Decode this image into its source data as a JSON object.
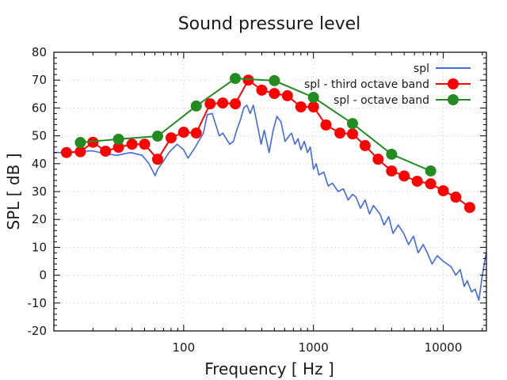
{
  "chart_data": {
    "type": "line",
    "title": "Sound pressure level",
    "xlabel": "Frequency [ Hz ]",
    "ylabel": "SPL [ dB ]",
    "xscale": "log",
    "xlim": [
      10,
      21500
    ],
    "ylim": [
      -20,
      80
    ],
    "xticks": [
      100,
      1000,
      10000
    ],
    "xtick_labels": [
      "100",
      "1000",
      "10000"
    ],
    "yticks": [
      -20,
      -10,
      0,
      10,
      20,
      30,
      40,
      50,
      60,
      70,
      80
    ],
    "ytick_labels": [
      "-20",
      "-10",
      "0",
      "10",
      "20",
      "30",
      "40",
      "50",
      "60",
      "70",
      "80"
    ],
    "grid": true,
    "legend_position": "top-right",
    "series": [
      {
        "name": "spl",
        "color": "#4169e1",
        "marker": "none",
        "x": [
          10,
          12.5,
          16,
          20,
          25.3,
          30.7,
          39,
          48,
          54,
          60.3,
          63,
          70,
          77,
          89,
          100,
          108,
          123,
          142,
          152,
          166,
          188,
          200,
          226,
          242,
          256,
          275,
          290,
          307,
          325,
          344,
          373,
          395,
          418,
          455,
          489,
          523,
          563,
          604,
          650,
          678,
          720,
          760,
          800,
          850,
          900,
          945,
          1000,
          1050,
          1100,
          1200,
          1300,
          1400,
          1550,
          1700,
          1850,
          2000,
          2130,
          2300,
          2500,
          2700,
          2900,
          3250,
          3500,
          3800,
          4100,
          4500,
          4960,
          5400,
          5900,
          6400,
          7000,
          7550,
          8200,
          9000,
          10000,
          11500,
          12500,
          13500,
          14500,
          15300,
          16500,
          17600,
          18800,
          20000,
          21400
        ],
        "y": [
          44,
          44,
          44.5,
          44.6,
          43.5,
          43,
          44,
          43,
          40,
          35.7,
          38,
          41,
          44,
          47,
          45,
          42,
          46,
          51,
          57.6,
          58,
          50,
          51,
          47,
          48,
          52,
          56,
          60,
          61,
          58,
          61,
          53,
          47,
          52,
          44,
          52,
          57,
          55,
          48,
          50,
          51,
          47,
          49,
          45,
          48,
          44,
          46,
          38,
          40,
          36,
          37,
          32,
          33,
          30,
          31,
          27,
          29,
          28,
          24,
          27,
          22,
          25,
          22,
          18,
          21,
          15,
          18,
          15,
          11,
          14,
          8,
          11,
          8,
          4,
          7,
          5,
          3,
          0,
          2,
          -4,
          -2,
          -6,
          -5,
          -9,
          0,
          8
        ]
      },
      {
        "name": "spl - third octave band",
        "color": "#ff0000",
        "marker": "circle",
        "x": [
          12.5,
          16,
          20,
          25,
          31.5,
          40,
          50,
          63,
          80,
          100,
          125,
          160,
          200,
          250,
          315,
          400,
          500,
          630,
          800,
          1000,
          1250,
          1600,
          2000,
          2500,
          3150,
          4000,
          5000,
          6300,
          8000,
          10000,
          12500,
          16000
        ],
        "y": [
          44.0,
          44.3,
          47.7,
          44.5,
          45.9,
          47.0,
          47.0,
          41.6,
          49.3,
          51.3,
          51.0,
          61.5,
          61.8,
          61.5,
          70.0,
          66.4,
          65.2,
          64.4,
          60.4,
          60.4,
          53.9,
          51.0,
          50.7,
          46.5,
          41.6,
          37.4,
          35.6,
          33.7,
          32.8,
          30.3,
          28.0,
          24.3
        ]
      },
      {
        "name": "spl - octave band",
        "color": "#228b22",
        "marker": "circle",
        "x": [
          16,
          31.5,
          63,
          125,
          250,
          500,
          1000,
          2000,
          4000,
          8000
        ],
        "y": [
          47.6,
          48.8,
          49.9,
          60.7,
          70.6,
          69.8,
          63.8,
          54.4,
          43.4,
          37.4
        ]
      }
    ]
  }
}
